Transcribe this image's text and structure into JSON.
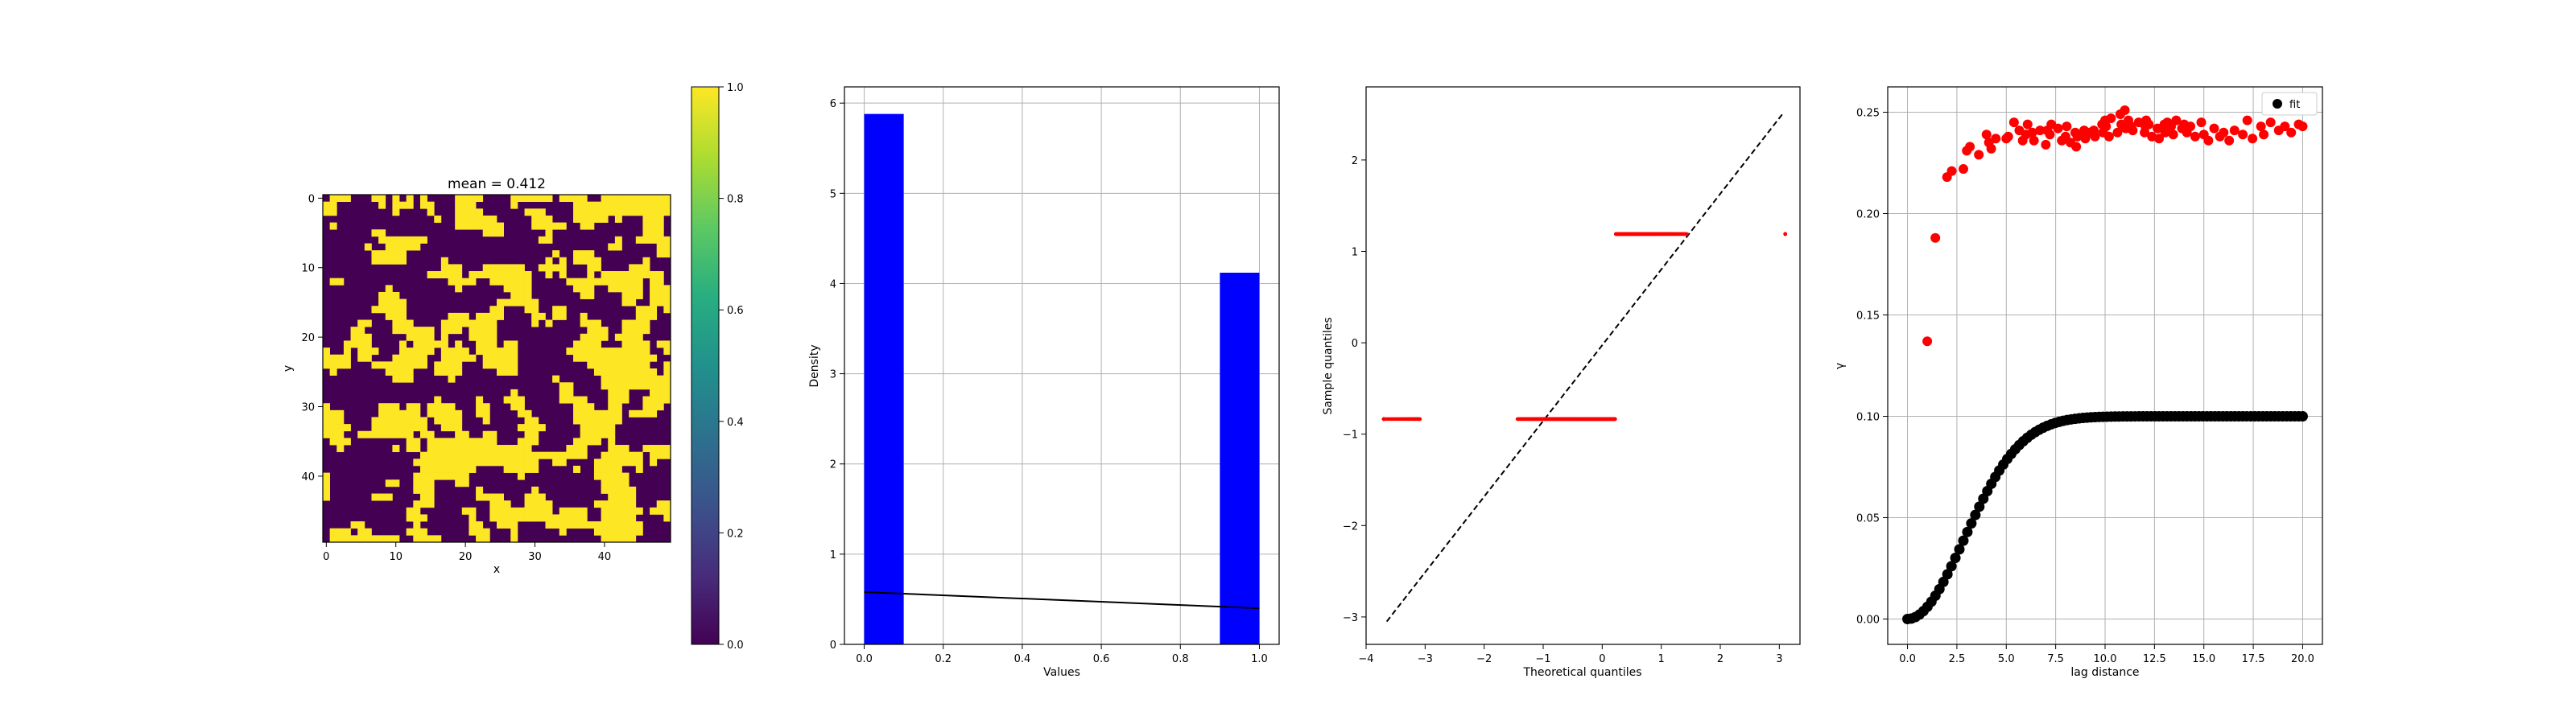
{
  "chart_data": [
    {
      "type": "heatmap",
      "title": "mean = 0.412",
      "xlabel": "x",
      "ylabel": "y",
      "grid_size": 50,
      "xticks": [
        0,
        10,
        20,
        30,
        40
      ],
      "yticks": [
        0,
        10,
        20,
        30,
        40
      ],
      "xlim": [
        -0.5,
        49.5
      ],
      "ylim": [
        49.5,
        -0.5
      ],
      "colormap": "viridis",
      "values_binary": [
        0,
        1
      ],
      "mean": 0.412,
      "colorbar": {
        "range": [
          0.0,
          1.0
        ],
        "ticks": [
          "0.0",
          "0.2",
          "0.4",
          "0.6",
          "0.8",
          "1.0"
        ]
      }
    },
    {
      "type": "bar",
      "xlabel": "Values",
      "ylabel": "Density",
      "xlim": [
        -0.05,
        1.05
      ],
      "ylim": [
        0,
        6.18
      ],
      "xticks": [
        "0.0",
        "0.2",
        "0.4",
        "0.6",
        "0.8",
        "1.0"
      ],
      "yticks": [
        "0",
        "1",
        "2",
        "3",
        "4",
        "5",
        "6"
      ],
      "bins": [
        {
          "x0": 0.0,
          "x1": 0.1,
          "density": 5.88
        },
        {
          "x0": 0.9,
          "x1": 1.0,
          "density": 4.12
        }
      ],
      "bar_color": "#0000ff",
      "line": {
        "x": [
          0.0,
          1.0
        ],
        "y": [
          0.58,
          0.4
        ],
        "color": "#000000"
      },
      "grid": true
    },
    {
      "type": "scatter",
      "xlabel": "Theoretical quantiles",
      "ylabel": "Sample quantiles",
      "xlim": [
        -4.0,
        3.35
      ],
      "ylim": [
        -3.3,
        2.8
      ],
      "xticks": [
        "−4",
        "−3",
        "−2",
        "−1",
        "0",
        "1",
        "2",
        "3"
      ],
      "yticks": [
        "−3",
        "−2",
        "−1",
        "0",
        "1",
        "2"
      ],
      "series": [
        {
          "color": "#ff0000",
          "x_range": [
            -3.7,
            0.23
          ],
          "y": -0.835
        },
        {
          "color": "#ff0000",
          "x_range": [
            0.23,
            3.1
          ],
          "y": 1.19
        }
      ],
      "reference_line": {
        "x": [
          -3.65,
          3.05
        ],
        "y": [
          -3.05,
          2.5
        ],
        "style": "dashed",
        "color": "#000000"
      }
    },
    {
      "type": "scatter",
      "xlabel": "lag distance",
      "ylabel": "γ",
      "xlim": [
        -1.0,
        21.0
      ],
      "ylim": [
        -0.0125,
        0.2625
      ],
      "xticks": [
        "0.0",
        "2.5",
        "5.0",
        "7.5",
        "10.0",
        "12.5",
        "15.0",
        "17.5",
        "20.0"
      ],
      "yticks": [
        "0.00",
        "0.05",
        "0.10",
        "0.15",
        "0.20",
        "0.25"
      ],
      "grid": true,
      "legend": {
        "position": "top-right",
        "entries": [
          "fit"
        ]
      },
      "fit_series": {
        "name": "fit",
        "color": "#000000",
        "model": "gaussian",
        "sill": 0.1,
        "range": 7.0,
        "x_max": 20.0,
        "count": 100
      },
      "empirical_series": {
        "color": "#ff0000",
        "x": [
          1.0,
          1.41,
          2.0,
          2.24,
          2.83,
          3.0,
          3.16,
          3.61,
          4.0,
          4.12,
          4.24,
          4.47,
          5.0,
          5.1,
          5.39,
          5.66,
          5.83,
          6.0,
          6.08,
          6.32,
          6.4,
          6.71,
          7.0,
          7.07,
          7.21,
          7.28,
          7.62,
          7.81,
          8.0,
          8.06,
          8.25,
          8.49,
          8.54,
          8.6,
          8.94,
          9.0,
          9.06,
          9.22,
          9.43,
          9.49,
          9.85,
          9.9,
          10.0,
          10.05,
          10.2,
          10.3,
          10.63,
          10.77,
          10.82,
          11.0,
          11.05,
          11.18,
          11.31,
          11.4,
          11.7,
          12.0,
          12.04,
          12.08,
          12.21,
          12.37,
          12.65,
          12.73,
          13.0,
          13.04,
          13.15,
          13.34,
          13.45,
          13.6,
          13.89,
          14.0,
          14.14,
          14.32,
          14.56,
          14.87,
          15.0,
          15.23,
          15.52,
          15.81,
          16.0,
          16.28,
          16.55,
          16.97,
          17.2,
          17.46,
          17.89,
          18.03,
          18.38,
          18.79,
          19.1,
          19.42,
          19.8,
          20.0
        ],
        "y": [
          0.137,
          0.188,
          0.218,
          0.221,
          0.222,
          0.231,
          0.233,
          0.229,
          0.239,
          0.235,
          0.232,
          0.237,
          0.237,
          0.238,
          0.245,
          0.241,
          0.236,
          0.239,
          0.244,
          0.24,
          0.236,
          0.241,
          0.234,
          0.241,
          0.239,
          0.244,
          0.242,
          0.236,
          0.238,
          0.243,
          0.235,
          0.24,
          0.233,
          0.238,
          0.241,
          0.237,
          0.239,
          0.24,
          0.241,
          0.238,
          0.244,
          0.24,
          0.246,
          0.243,
          0.238,
          0.247,
          0.24,
          0.249,
          0.244,
          0.251,
          0.242,
          0.246,
          0.243,
          0.241,
          0.245,
          0.24,
          0.243,
          0.246,
          0.244,
          0.238,
          0.242,
          0.237,
          0.244,
          0.24,
          0.245,
          0.243,
          0.239,
          0.246,
          0.242,
          0.244,
          0.24,
          0.243,
          0.238,
          0.245,
          0.239,
          0.236,
          0.242,
          0.238,
          0.24,
          0.236,
          0.241,
          0.239,
          0.246,
          0.237,
          0.243,
          0.239,
          0.245,
          0.241,
          0.243,
          0.24,
          0.244,
          0.243
        ]
      }
    }
  ]
}
